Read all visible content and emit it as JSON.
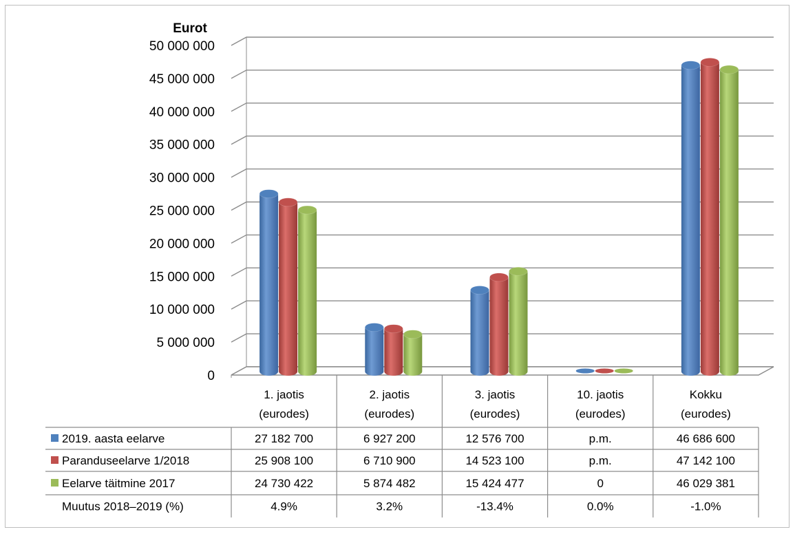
{
  "chart_data": {
    "type": "bar",
    "ylabel": "Eurot",
    "ylim": [
      0,
      50000000
    ],
    "y_ticks": [
      "0",
      "5 000 000",
      "10 000 000",
      "15 000 000",
      "20 000 000",
      "25 000 000",
      "30 000 000",
      "35 000 000",
      "40 000 000",
      "45 000 000",
      "50 000 000"
    ],
    "categories": [
      {
        "line1": "1. jaotis",
        "line2": "(eurodes)"
      },
      {
        "line1": "2. jaotis",
        "line2": "(eurodes)"
      },
      {
        "line1": "3. jaotis",
        "line2": "(eurodes)"
      },
      {
        "line1": "10. jaotis",
        "line2": "(eurodes)"
      },
      {
        "line1": "Kokku",
        "line2": "(eurodes)"
      }
    ],
    "series": [
      {
        "name": "2019. aasta eelarve",
        "color": "#4F81BD",
        "values": [
          27182700,
          6927200,
          12576700,
          0,
          46686600
        ],
        "labels": [
          "27 182 700",
          "6 927 200",
          "12 576 700",
          "p.m.",
          "46 686 600"
        ]
      },
      {
        "name": "Paranduseelarve 1/2018",
        "color": "#C0504D",
        "values": [
          25908100,
          6710900,
          14523100,
          0,
          47142100
        ],
        "labels": [
          "25 908 100",
          "6 710 900",
          "14 523 100",
          "p.m.",
          "47 142 100"
        ]
      },
      {
        "name": "Eelarve täitmine 2017",
        "color": "#9BBB59",
        "values": [
          24730422,
          5874482,
          15424477,
          0,
          46029381
        ],
        "labels": [
          "24 730 422",
          "5 874 482",
          "15 424 477",
          "0",
          "46 029 381"
        ]
      }
    ],
    "extra_row": {
      "name": "Muutus 2018–2019 (%)",
      "labels": [
        "4.9%",
        "3.2%",
        "-13.4%",
        "0.0%",
        "-1.0%"
      ]
    },
    "legend": "table",
    "grid": true
  }
}
